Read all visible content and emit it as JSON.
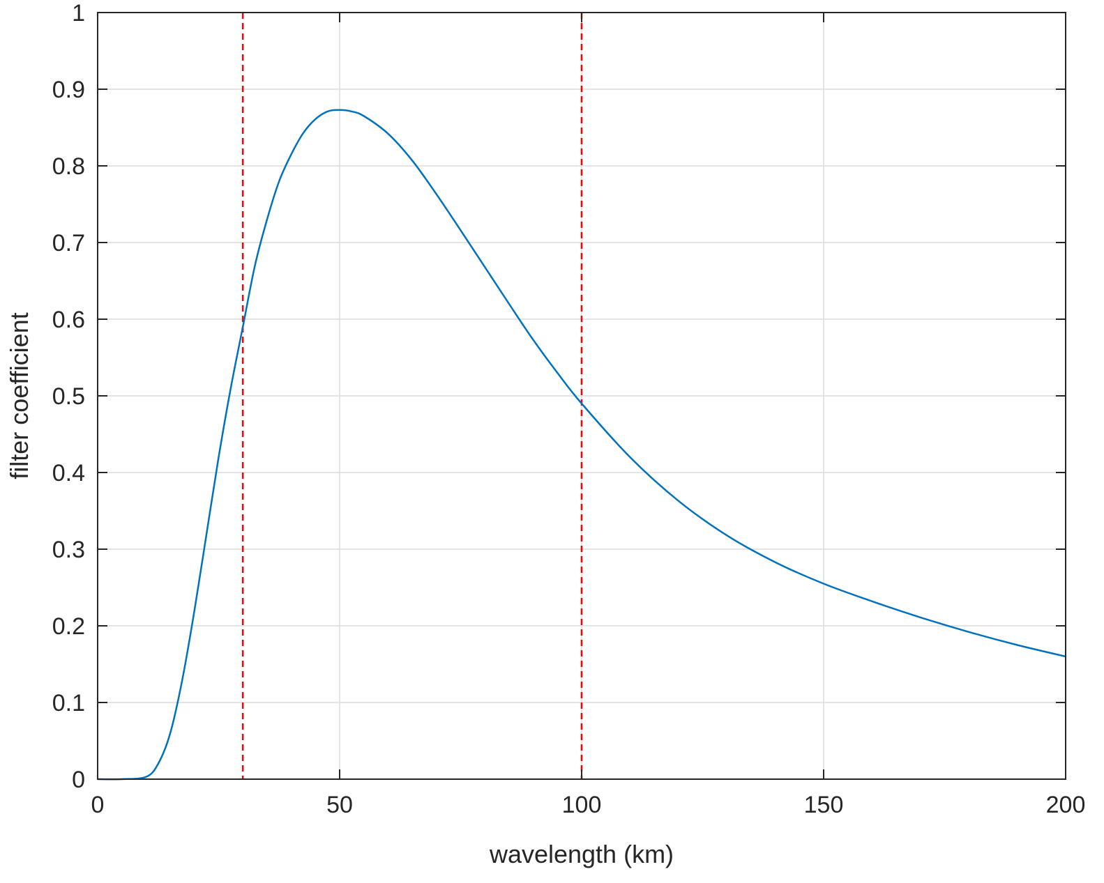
{
  "chart_data": {
    "type": "line",
    "title": "",
    "xlabel": "wavelength (km)",
    "ylabel": "filter coefficient",
    "xlim": [
      0,
      200
    ],
    "ylim": [
      0,
      1
    ],
    "xticks": [
      0,
      50,
      100,
      150,
      200
    ],
    "yticks": [
      0,
      0.1,
      0.2,
      0.3,
      0.4,
      0.5,
      0.6,
      0.7,
      0.8,
      0.9,
      1
    ],
    "xtick_labels": [
      "0",
      "50",
      "100",
      "150",
      "200"
    ],
    "ytick_labels": [
      "0",
      "0.1",
      "0.2",
      "0.3",
      "0.4",
      "0.5",
      "0.6",
      "0.7",
      "0.8",
      "0.9",
      "1"
    ],
    "grid": true,
    "series": [
      {
        "color": "#0072bd",
        "x": [
          0,
          5,
          10,
          12.5,
          15,
          17.5,
          20,
          22.5,
          25,
          27.5,
          30,
          32.5,
          35,
          37.5,
          40,
          42.5,
          45,
          47.5,
          50,
          52.5,
          55,
          60,
          65,
          70,
          75,
          80,
          85,
          90,
          95,
          100,
          110,
          120,
          130,
          140,
          150,
          160,
          170,
          180,
          190,
          200
        ],
        "y": [
          0,
          0,
          0.003,
          0.02,
          0.06,
          0.13,
          0.22,
          0.32,
          0.42,
          0.51,
          0.59,
          0.67,
          0.73,
          0.78,
          0.815,
          0.843,
          0.861,
          0.871,
          0.873,
          0.871,
          0.865,
          0.842,
          0.807,
          0.763,
          0.716,
          0.668,
          0.62,
          0.573,
          0.53,
          0.49,
          0.42,
          0.363,
          0.318,
          0.283,
          0.255,
          0.232,
          0.211,
          0.192,
          0.175,
          0.16
        ]
      }
    ],
    "reference_lines": [
      {
        "axis": "x",
        "value": 30,
        "color": "#ff0000",
        "style": "dashed"
      },
      {
        "axis": "x",
        "value": 100,
        "color": "#ff0000",
        "style": "dashed"
      }
    ]
  }
}
